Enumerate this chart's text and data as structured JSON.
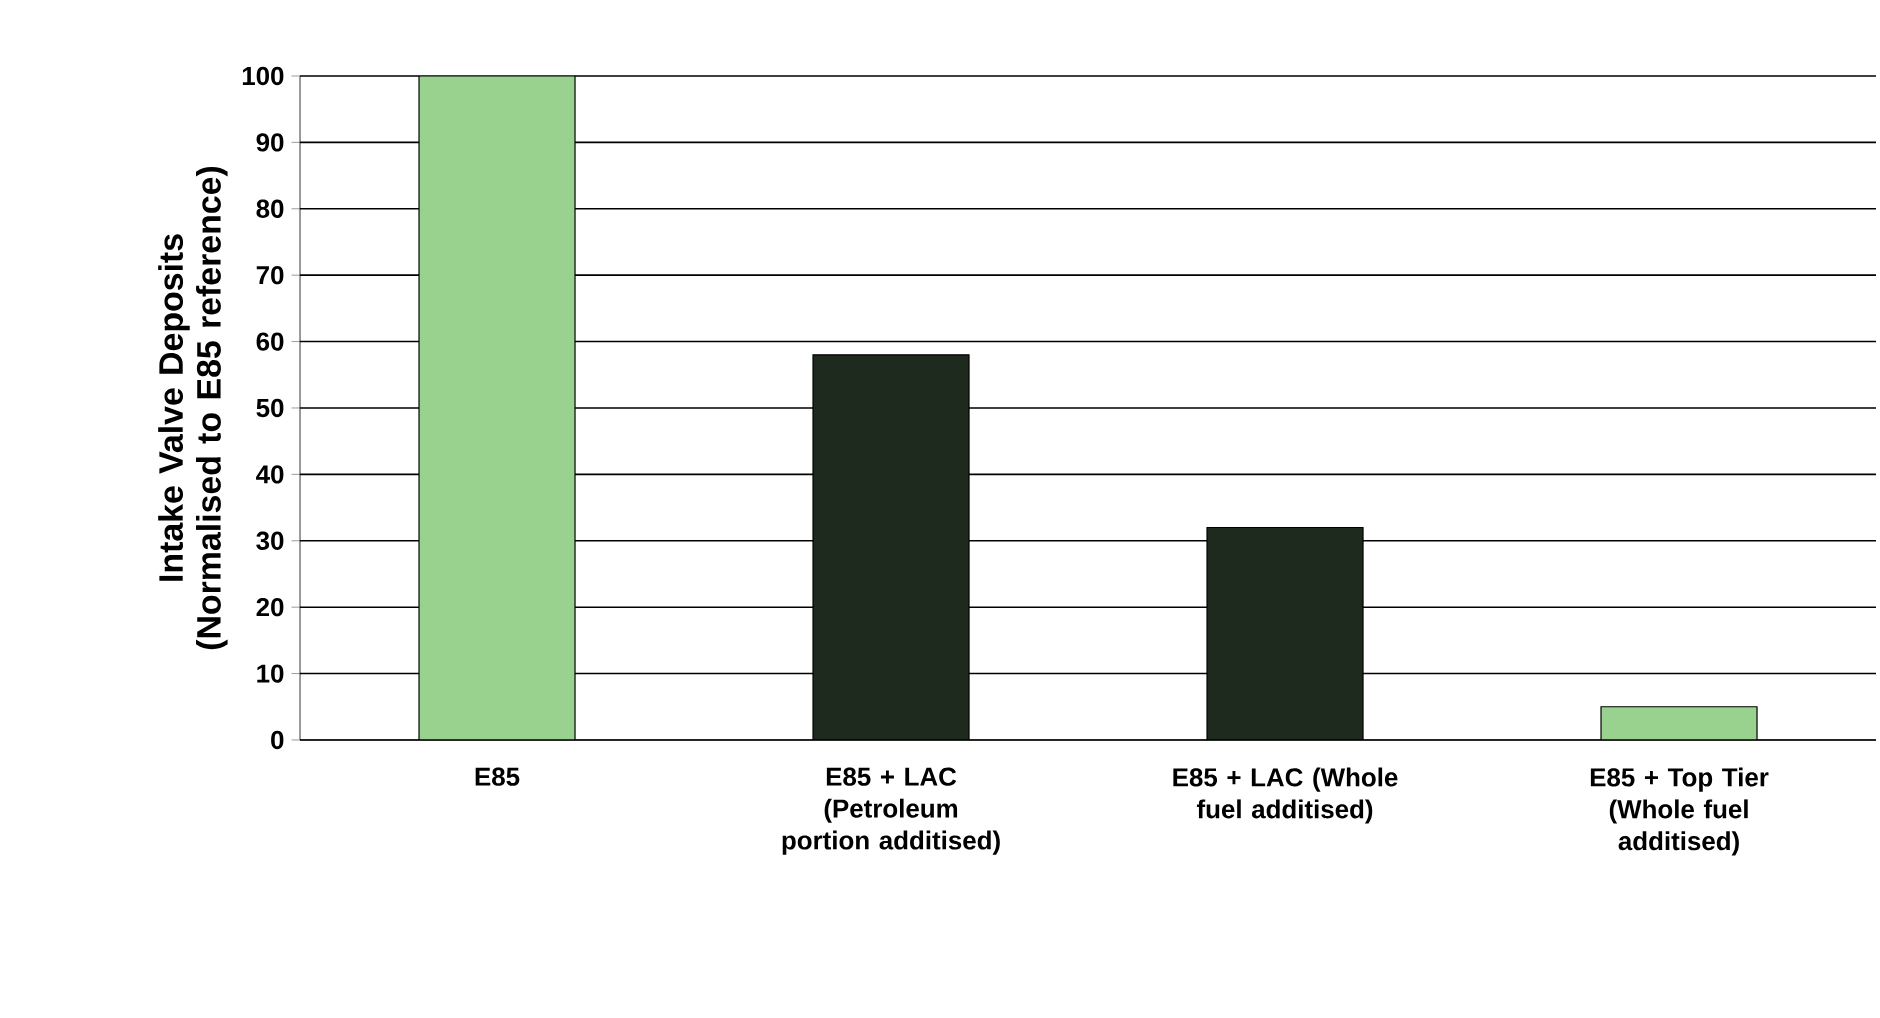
{
  "chart_data": {
    "type": "bar",
    "ylabel": "Intake Valve Deposits (Normalised to E85 reference)",
    "categories": [
      "E85",
      "E85 + LAC (Petroleum portion additised)",
      "E85 + LAC (Whole fuel additised)",
      "E85 + Top Tier (Whole fuel additised)"
    ],
    "values": [
      100,
      58,
      32,
      5
    ],
    "colors": [
      "#99d18f",
      "#1e2a1e",
      "#1e2a1e",
      "#99d18f"
    ],
    "ylim": [
      0,
      100
    ],
    "yticks": [
      0,
      10,
      20,
      30,
      40,
      50,
      60,
      70,
      80,
      90,
      100
    ],
    "grid": "y"
  }
}
